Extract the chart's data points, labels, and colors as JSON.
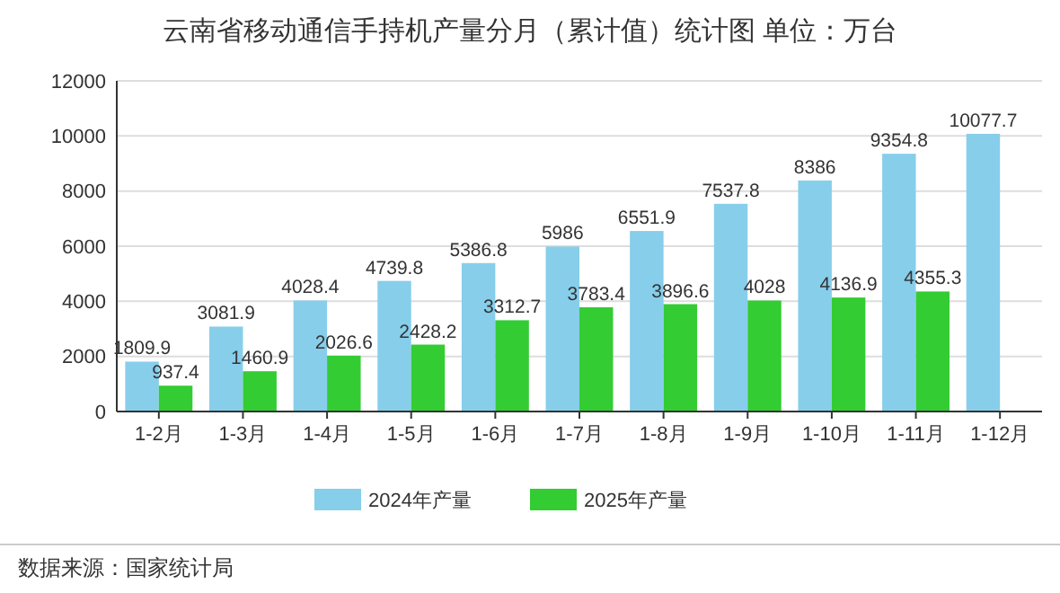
{
  "chart_data": {
    "type": "bar",
    "title": "云南省移动通信手持机产量分月（累计值）统计图 单位：万台",
    "categories": [
      "1-2月",
      "1-3月",
      "1-4月",
      "1-5月",
      "1-6月",
      "1-7月",
      "1-8月",
      "1-9月",
      "1-10月",
      "1-11月",
      "1-12月"
    ],
    "series": [
      {
        "name": "2024年产量",
        "color": "#87ceeb",
        "values": [
          1809.9,
          3081.9,
          4028.4,
          4739.8,
          5386.8,
          5986,
          6551.9,
          7537.8,
          8386,
          9354.8,
          10077.7
        ]
      },
      {
        "name": "2025年产量",
        "color": "#33cc33",
        "values": [
          937.4,
          1460.9,
          2026.6,
          2428.2,
          3312.7,
          3783.4,
          3896.6,
          4028,
          4136.9,
          4355.3,
          null
        ]
      }
    ],
    "ylim": [
      0,
      12000
    ],
    "yticks": [
      0,
      2000,
      4000,
      6000,
      8000,
      10000,
      12000
    ],
    "grid": "y",
    "legend": "bottom",
    "data_labels": true,
    "annotations": [
      "数据来源：国家统计局"
    ]
  }
}
